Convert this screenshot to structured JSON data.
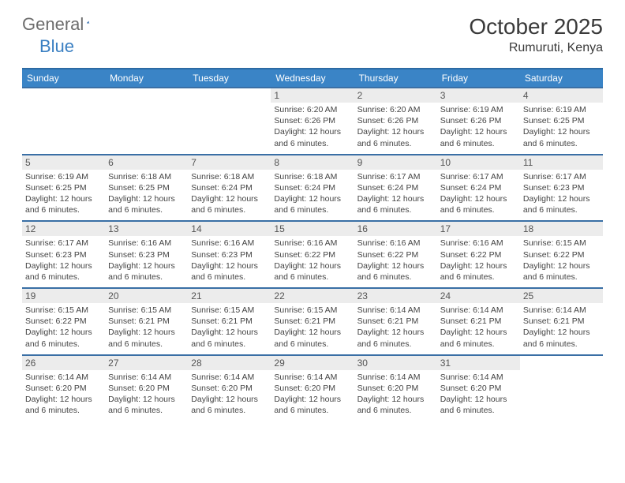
{
  "logo": {
    "text_gray": "General",
    "text_blue": "Blue"
  },
  "title": "October 2025",
  "location": "Rumuruti, Kenya",
  "colors": {
    "header_bg": "#3a84c6",
    "header_border_top": "#2d6aa3",
    "week_border": "#3a6fa5",
    "daynum_bg": "#ececec",
    "text_dark": "#3a3a3a",
    "text_body": "#444444",
    "logo_gray": "#6d6d6d",
    "logo_blue": "#3a7fc2",
    "page_bg": "#ffffff"
  },
  "days_of_week": [
    "Sunday",
    "Monday",
    "Tuesday",
    "Wednesday",
    "Thursday",
    "Friday",
    "Saturday"
  ],
  "weeks": [
    [
      {
        "n": "",
        "sr": "",
        "ss": "",
        "dl": ""
      },
      {
        "n": "",
        "sr": "",
        "ss": "",
        "dl": ""
      },
      {
        "n": "",
        "sr": "",
        "ss": "",
        "dl": ""
      },
      {
        "n": "1",
        "sr": "Sunrise: 6:20 AM",
        "ss": "Sunset: 6:26 PM",
        "dl": "Daylight: 12 hours and 6 minutes."
      },
      {
        "n": "2",
        "sr": "Sunrise: 6:20 AM",
        "ss": "Sunset: 6:26 PM",
        "dl": "Daylight: 12 hours and 6 minutes."
      },
      {
        "n": "3",
        "sr": "Sunrise: 6:19 AM",
        "ss": "Sunset: 6:26 PM",
        "dl": "Daylight: 12 hours and 6 minutes."
      },
      {
        "n": "4",
        "sr": "Sunrise: 6:19 AM",
        "ss": "Sunset: 6:25 PM",
        "dl": "Daylight: 12 hours and 6 minutes."
      }
    ],
    [
      {
        "n": "5",
        "sr": "Sunrise: 6:19 AM",
        "ss": "Sunset: 6:25 PM",
        "dl": "Daylight: 12 hours and 6 minutes."
      },
      {
        "n": "6",
        "sr": "Sunrise: 6:18 AM",
        "ss": "Sunset: 6:25 PM",
        "dl": "Daylight: 12 hours and 6 minutes."
      },
      {
        "n": "7",
        "sr": "Sunrise: 6:18 AM",
        "ss": "Sunset: 6:24 PM",
        "dl": "Daylight: 12 hours and 6 minutes."
      },
      {
        "n": "8",
        "sr": "Sunrise: 6:18 AM",
        "ss": "Sunset: 6:24 PM",
        "dl": "Daylight: 12 hours and 6 minutes."
      },
      {
        "n": "9",
        "sr": "Sunrise: 6:17 AM",
        "ss": "Sunset: 6:24 PM",
        "dl": "Daylight: 12 hours and 6 minutes."
      },
      {
        "n": "10",
        "sr": "Sunrise: 6:17 AM",
        "ss": "Sunset: 6:24 PM",
        "dl": "Daylight: 12 hours and 6 minutes."
      },
      {
        "n": "11",
        "sr": "Sunrise: 6:17 AM",
        "ss": "Sunset: 6:23 PM",
        "dl": "Daylight: 12 hours and 6 minutes."
      }
    ],
    [
      {
        "n": "12",
        "sr": "Sunrise: 6:17 AM",
        "ss": "Sunset: 6:23 PM",
        "dl": "Daylight: 12 hours and 6 minutes."
      },
      {
        "n": "13",
        "sr": "Sunrise: 6:16 AM",
        "ss": "Sunset: 6:23 PM",
        "dl": "Daylight: 12 hours and 6 minutes."
      },
      {
        "n": "14",
        "sr": "Sunrise: 6:16 AM",
        "ss": "Sunset: 6:23 PM",
        "dl": "Daylight: 12 hours and 6 minutes."
      },
      {
        "n": "15",
        "sr": "Sunrise: 6:16 AM",
        "ss": "Sunset: 6:22 PM",
        "dl": "Daylight: 12 hours and 6 minutes."
      },
      {
        "n": "16",
        "sr": "Sunrise: 6:16 AM",
        "ss": "Sunset: 6:22 PM",
        "dl": "Daylight: 12 hours and 6 minutes."
      },
      {
        "n": "17",
        "sr": "Sunrise: 6:16 AM",
        "ss": "Sunset: 6:22 PM",
        "dl": "Daylight: 12 hours and 6 minutes."
      },
      {
        "n": "18",
        "sr": "Sunrise: 6:15 AM",
        "ss": "Sunset: 6:22 PM",
        "dl": "Daylight: 12 hours and 6 minutes."
      }
    ],
    [
      {
        "n": "19",
        "sr": "Sunrise: 6:15 AM",
        "ss": "Sunset: 6:22 PM",
        "dl": "Daylight: 12 hours and 6 minutes."
      },
      {
        "n": "20",
        "sr": "Sunrise: 6:15 AM",
        "ss": "Sunset: 6:21 PM",
        "dl": "Daylight: 12 hours and 6 minutes."
      },
      {
        "n": "21",
        "sr": "Sunrise: 6:15 AM",
        "ss": "Sunset: 6:21 PM",
        "dl": "Daylight: 12 hours and 6 minutes."
      },
      {
        "n": "22",
        "sr": "Sunrise: 6:15 AM",
        "ss": "Sunset: 6:21 PM",
        "dl": "Daylight: 12 hours and 6 minutes."
      },
      {
        "n": "23",
        "sr": "Sunrise: 6:14 AM",
        "ss": "Sunset: 6:21 PM",
        "dl": "Daylight: 12 hours and 6 minutes."
      },
      {
        "n": "24",
        "sr": "Sunrise: 6:14 AM",
        "ss": "Sunset: 6:21 PM",
        "dl": "Daylight: 12 hours and 6 minutes."
      },
      {
        "n": "25",
        "sr": "Sunrise: 6:14 AM",
        "ss": "Sunset: 6:21 PM",
        "dl": "Daylight: 12 hours and 6 minutes."
      }
    ],
    [
      {
        "n": "26",
        "sr": "Sunrise: 6:14 AM",
        "ss": "Sunset: 6:20 PM",
        "dl": "Daylight: 12 hours and 6 minutes."
      },
      {
        "n": "27",
        "sr": "Sunrise: 6:14 AM",
        "ss": "Sunset: 6:20 PM",
        "dl": "Daylight: 12 hours and 6 minutes."
      },
      {
        "n": "28",
        "sr": "Sunrise: 6:14 AM",
        "ss": "Sunset: 6:20 PM",
        "dl": "Daylight: 12 hours and 6 minutes."
      },
      {
        "n": "29",
        "sr": "Sunrise: 6:14 AM",
        "ss": "Sunset: 6:20 PM",
        "dl": "Daylight: 12 hours and 6 minutes."
      },
      {
        "n": "30",
        "sr": "Sunrise: 6:14 AM",
        "ss": "Sunset: 6:20 PM",
        "dl": "Daylight: 12 hours and 6 minutes."
      },
      {
        "n": "31",
        "sr": "Sunrise: 6:14 AM",
        "ss": "Sunset: 6:20 PM",
        "dl": "Daylight: 12 hours and 6 minutes."
      },
      {
        "n": "",
        "sr": "",
        "ss": "",
        "dl": ""
      }
    ]
  ]
}
